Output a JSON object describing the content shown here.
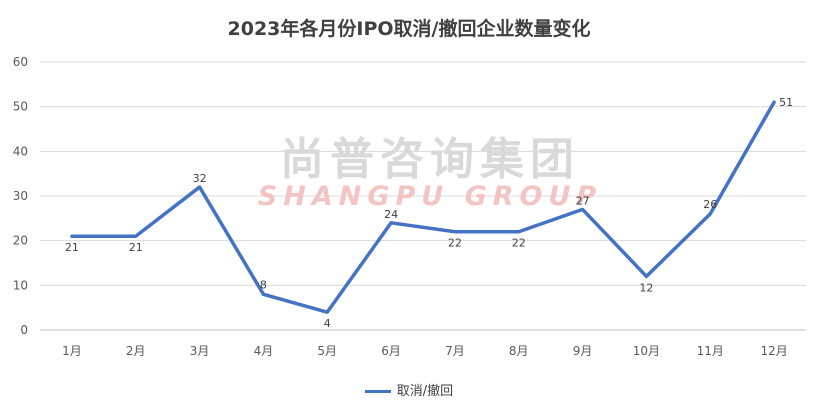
{
  "chart_data": {
    "type": "line",
    "title": "2023年各月份IPO取消/撤回企业数量变化",
    "categories": [
      "1月",
      "2月",
      "3月",
      "4月",
      "5月",
      "6月",
      "7月",
      "8月",
      "9月",
      "10月",
      "11月",
      "12月"
    ],
    "series": [
      {
        "name": "取消/撤回",
        "values": [
          21,
          21,
          32,
          8,
          4,
          24,
          22,
          22,
          27,
          12,
          26,
          51
        ],
        "color": "#4472c4"
      }
    ],
    "ylim": [
      0,
      60
    ],
    "yticks": [
      0,
      10,
      20,
      30,
      40,
      50,
      60
    ],
    "xlabel": "",
    "ylabel": "",
    "grid": true,
    "legend_position": "bottom"
  },
  "watermark": {
    "cn": "尚普咨询集团",
    "en": "SHANGPU GROUP"
  }
}
